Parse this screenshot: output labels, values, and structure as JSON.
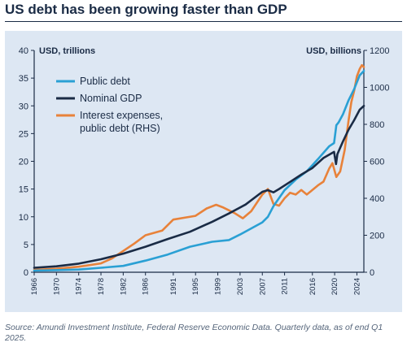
{
  "header": {
    "title": "US debt has been growing faster than GDP"
  },
  "footer": {
    "source": "Source: Amundi Investment Institute, Federal Reserve Economic Data. Quarterly data, as of end Q1 2025."
  },
  "chart_data": {
    "type": "line",
    "left_axis_label": "USD, trillions",
    "right_axis_label": "USD, billions",
    "ylim_left": [
      0,
      40
    ],
    "ylim_right": [
      0,
      1200
    ],
    "yticks_left": [
      "0",
      "5",
      "10",
      "15",
      "20",
      "25",
      "30",
      "35",
      "40"
    ],
    "yticks_right": [
      "0",
      "200",
      "400",
      "600",
      "800",
      "1000",
      "1200"
    ],
    "xlim": [
      1966,
      2025.25
    ],
    "xticks": [
      "1966",
      "1970",
      "1974",
      "1978",
      "1982",
      "1986",
      "1991",
      "1995",
      "1999",
      "2003",
      "2007",
      "2011",
      "2016",
      "2020",
      "2024"
    ],
    "legend": [
      {
        "label": "Public debt",
        "color": "#2aa0d4"
      },
      {
        "label": "Nominal GDP",
        "color": "#1a2b45"
      },
      {
        "label": "Interest expenses,",
        "label2": "public debt (RHS)",
        "color": "#e8823a"
      }
    ],
    "series": [
      {
        "name": "Public debt",
        "axis": "left",
        "color": "#2aa0d4",
        "x": [
          1966,
          1970,
          1974,
          1978,
          1982,
          1986,
          1990,
          1994,
          1998,
          2001,
          2003,
          2005,
          2007,
          2008,
          2009,
          2011,
          2013,
          2015,
          2017,
          2019,
          2019.9,
          2020.3,
          2020.7,
          2021.5,
          2022.5,
          2023.5,
          2024.5,
          2025.25
        ],
        "y": [
          0.3,
          0.38,
          0.48,
          0.8,
          1.15,
          2.1,
          3.2,
          4.6,
          5.5,
          5.8,
          6.8,
          7.9,
          9.0,
          10.0,
          11.9,
          14.8,
          16.7,
          18.2,
          20.4,
          22.7,
          23.3,
          26.5,
          27.0,
          28.5,
          31.0,
          33.0,
          35.5,
          36.3
        ]
      },
      {
        "name": "Nominal GDP",
        "axis": "left",
        "color": "#1a2b45",
        "x": [
          1966,
          1970,
          1974,
          1978,
          1982,
          1986,
          1990,
          1994,
          1998,
          2001,
          2004,
          2007,
          2008,
          2009,
          2010,
          2012,
          2014,
          2016,
          2018,
          2019.9,
          2020.25,
          2020.5,
          2021.5,
          2022.5,
          2023.5,
          2024.5,
          2025.25
        ],
        "y": [
          0.8,
          1.07,
          1.55,
          2.35,
          3.35,
          4.6,
          6.0,
          7.3,
          9.1,
          10.6,
          12.2,
          14.5,
          14.8,
          14.4,
          15.0,
          16.3,
          17.6,
          18.8,
          20.6,
          21.7,
          19.5,
          21.3,
          23.6,
          25.7,
          27.4,
          29.3,
          30.0
        ]
      },
      {
        "name": "Interest expenses, public debt (RHS)",
        "axis": "right",
        "color": "#e8823a",
        "x": [
          1966,
          1970,
          1974,
          1978,
          1980,
          1982,
          1984,
          1986,
          1989,
          1991,
          1993,
          1995,
          1997,
          1998.7,
          2000,
          2002,
          2003.5,
          2005,
          2007,
          2008,
          2009,
          2010,
          2011,
          2012,
          2013,
          2014,
          2015,
          2016,
          2017,
          2018,
          2019,
          2019.6,
          2020.3,
          2021,
          2021.8,
          2022.5,
          2023,
          2023.5,
          2024,
          2024.5,
          2024.9,
          2025.25
        ],
        "y": [
          13,
          19,
          30,
          48,
          75,
          115,
          155,
          200,
          225,
          285,
          295,
          305,
          345,
          365,
          350,
          320,
          292,
          330,
          420,
          450,
          370,
          360,
          400,
          430,
          420,
          445,
          420,
          445,
          470,
          490,
          560,
          590,
          515,
          545,
          660,
          820,
          920,
          980,
          1060,
          1100,
          1120,
          1110
        ]
      }
    ]
  }
}
